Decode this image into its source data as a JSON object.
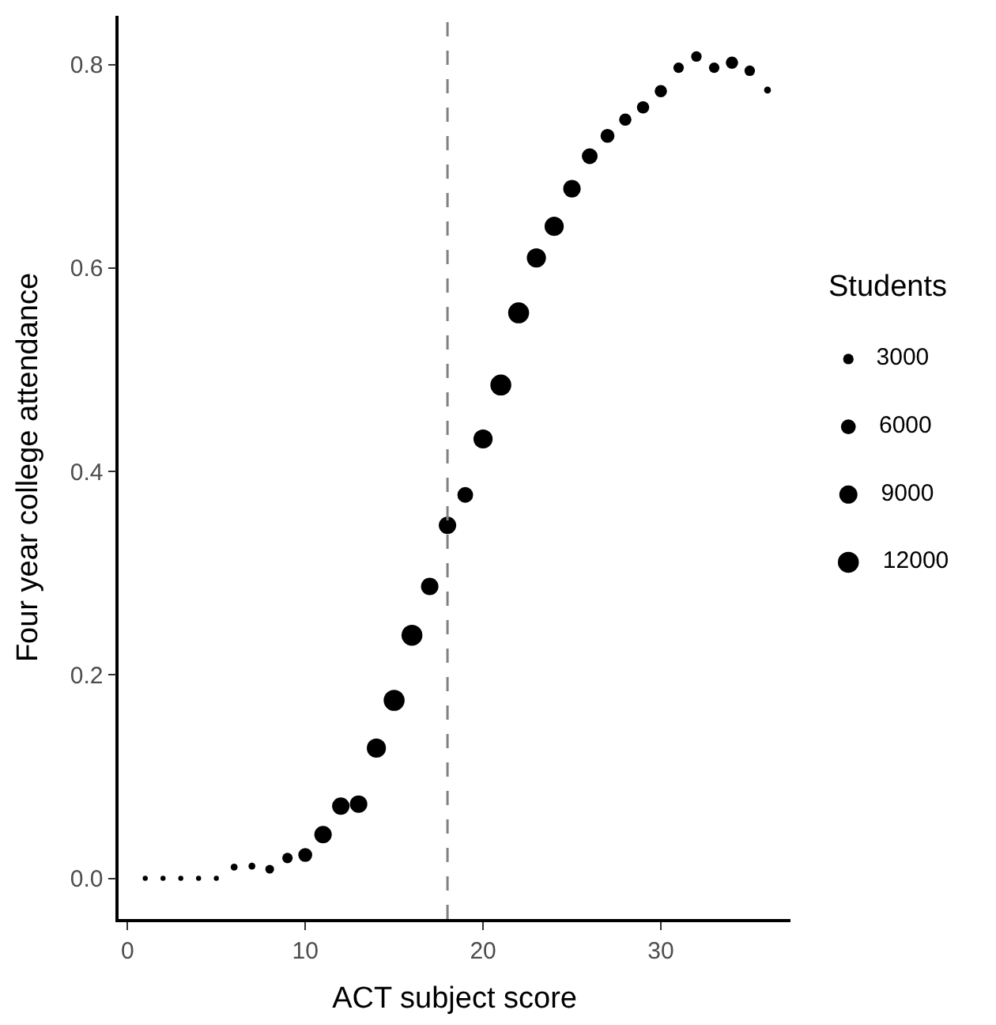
{
  "chart_data": {
    "type": "bubble",
    "xlabel": "ACT subject score",
    "ylabel": "Four year college attendance",
    "legend_title": "Students",
    "x": [
      1,
      2,
      3,
      4,
      5,
      6,
      7,
      8,
      9,
      10,
      11,
      12,
      13,
      14,
      15,
      16,
      17,
      18,
      19,
      20,
      21,
      22,
      23,
      24,
      25,
      26,
      27,
      28,
      29,
      30,
      31,
      32,
      33,
      34,
      35,
      36
    ],
    "values": [
      0.0,
      0.0,
      0.0,
      0.0,
      0.0,
      0.011,
      0.012,
      0.009,
      0.02,
      0.023,
      0.043,
      0.071,
      0.073,
      0.128,
      0.175,
      0.239,
      0.287,
      0.347,
      0.377,
      0.432,
      0.485,
      0.556,
      0.61,
      0.641,
      0.678,
      0.71,
      0.73,
      0.746,
      0.758,
      0.774,
      0.797,
      0.808,
      0.797,
      0.802,
      0.794,
      0.775
    ],
    "sizes": [
      700,
      700,
      700,
      700,
      700,
      1300,
      1300,
      2100,
      3000,
      5300,
      8300,
      8300,
      8300,
      10000,
      12000,
      12000,
      8300,
      8300,
      6800,
      10000,
      12000,
      12000,
      10000,
      10000,
      8300,
      6800,
      5300,
      4100,
      4100,
      4100,
      3000,
      3000,
      3000,
      4100,
      3000,
      1300
    ],
    "size_legend": [
      3000,
      6000,
      9000,
      12000
    ],
    "color": "#000000",
    "xlim": [
      -0.5,
      37.3
    ],
    "xticks": [
      0,
      10,
      20,
      30
    ],
    "ylim": [
      -0.04,
      0.848
    ],
    "yticks": [
      {
        "value": 0,
        "label": "0.0"
      },
      {
        "value": 0.2,
        "label": "0.2"
      },
      {
        "value": 0.4,
        "label": "0.4"
      },
      {
        "value": 0.6,
        "label": "0.6"
      },
      {
        "value": 0.8,
        "label": "0.8"
      }
    ],
    "ref_lines": [
      {
        "axis": "x",
        "value": 18,
        "color": "#808080",
        "line_style": "dashed"
      }
    ]
  }
}
